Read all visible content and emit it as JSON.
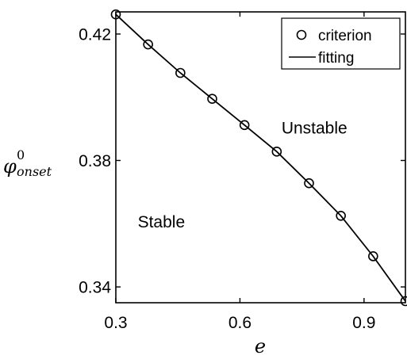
{
  "chart_data": {
    "type": "line",
    "xlabel": "e",
    "ylabel": {
      "base": "φ",
      "superscript": "0",
      "subscript": "onset"
    },
    "xlim": [
      0.3,
      1.0
    ],
    "ylim": [
      0.335,
      0.427
    ],
    "xticks": [
      0.3,
      0.6,
      0.9
    ],
    "xtick_labels": [
      "0.3",
      "0.6",
      "0.9"
    ],
    "yticks": [
      0.34,
      0.38,
      0.42
    ],
    "ytick_labels": [
      "0.34",
      "0.38",
      "0.42"
    ],
    "grid": false,
    "legend_position": "top-right",
    "series": [
      {
        "name": "criterion",
        "style": "markers",
        "marker": "open-circle",
        "color": "#000000",
        "x": [
          0.3,
          0.378,
          0.456,
          0.533,
          0.611,
          0.689,
          0.767,
          0.844,
          0.922,
          1.0
        ],
        "y": [
          0.4262,
          0.4167,
          0.4077,
          0.3995,
          0.3912,
          0.3828,
          0.3728,
          0.3625,
          0.3497,
          0.3355
        ]
      },
      {
        "name": "fitting",
        "style": "line",
        "color": "#000000",
        "x": [
          0.3,
          0.378,
          0.456,
          0.533,
          0.611,
          0.689,
          0.767,
          0.844,
          0.922,
          1.0
        ],
        "y": [
          0.4262,
          0.4167,
          0.4077,
          0.3995,
          0.3912,
          0.3828,
          0.3728,
          0.3625,
          0.3497,
          0.3355
        ]
      }
    ],
    "annotations": [
      {
        "text": "Unstable",
        "x": 0.78,
        "y": 0.3885
      },
      {
        "text": "Stable",
        "x": 0.41,
        "y": 0.3588
      }
    ]
  }
}
